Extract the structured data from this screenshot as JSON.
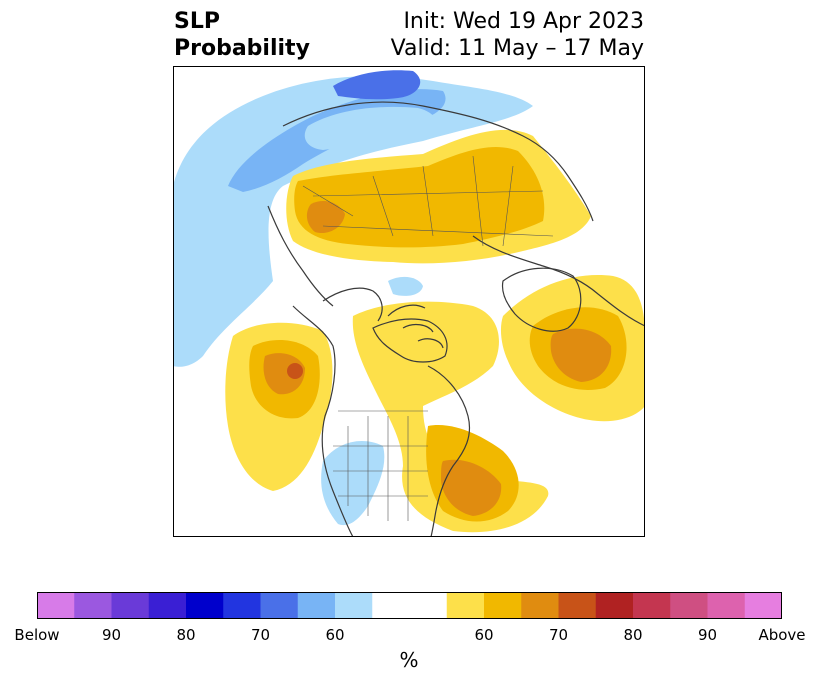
{
  "header": {
    "title_line1": "SLP",
    "title_line2": "Probability",
    "init_text": "Init: Wed 19 Apr 2023",
    "valid_text": "Valid: 11 May – 17 May"
  },
  "colorbar": {
    "unit": "%",
    "colors": [
      "#d77be8",
      "#9b58e0",
      "#6a3ad8",
      "#3a1fd4",
      "#0000cc",
      "#2235e0",
      "#4a70e8",
      "#78b4f5",
      "#acdcfa",
      "#ffffff",
      "#ffffff",
      "#fde04a",
      "#f1b800",
      "#e08c10",
      "#c85318",
      "#b02222",
      "#c43650",
      "#cf4f82",
      "#dd62ae",
      "#e67ee0"
    ],
    "tick_labels": [
      "Below",
      "90",
      "80",
      "70",
      "60",
      "60",
      "70",
      "80",
      "90",
      "Above"
    ]
  },
  "map": {
    "projection": "north-polar-stereographic",
    "legend_colors": {
      "below_60": "#acdcfa",
      "below_70": "#78b4f5",
      "below_80": "#4a70e8",
      "above_60": "#fde04a",
      "above_70": "#f1b800",
      "above_80": "#e08c10",
      "above_90": "#c85318"
    }
  }
}
